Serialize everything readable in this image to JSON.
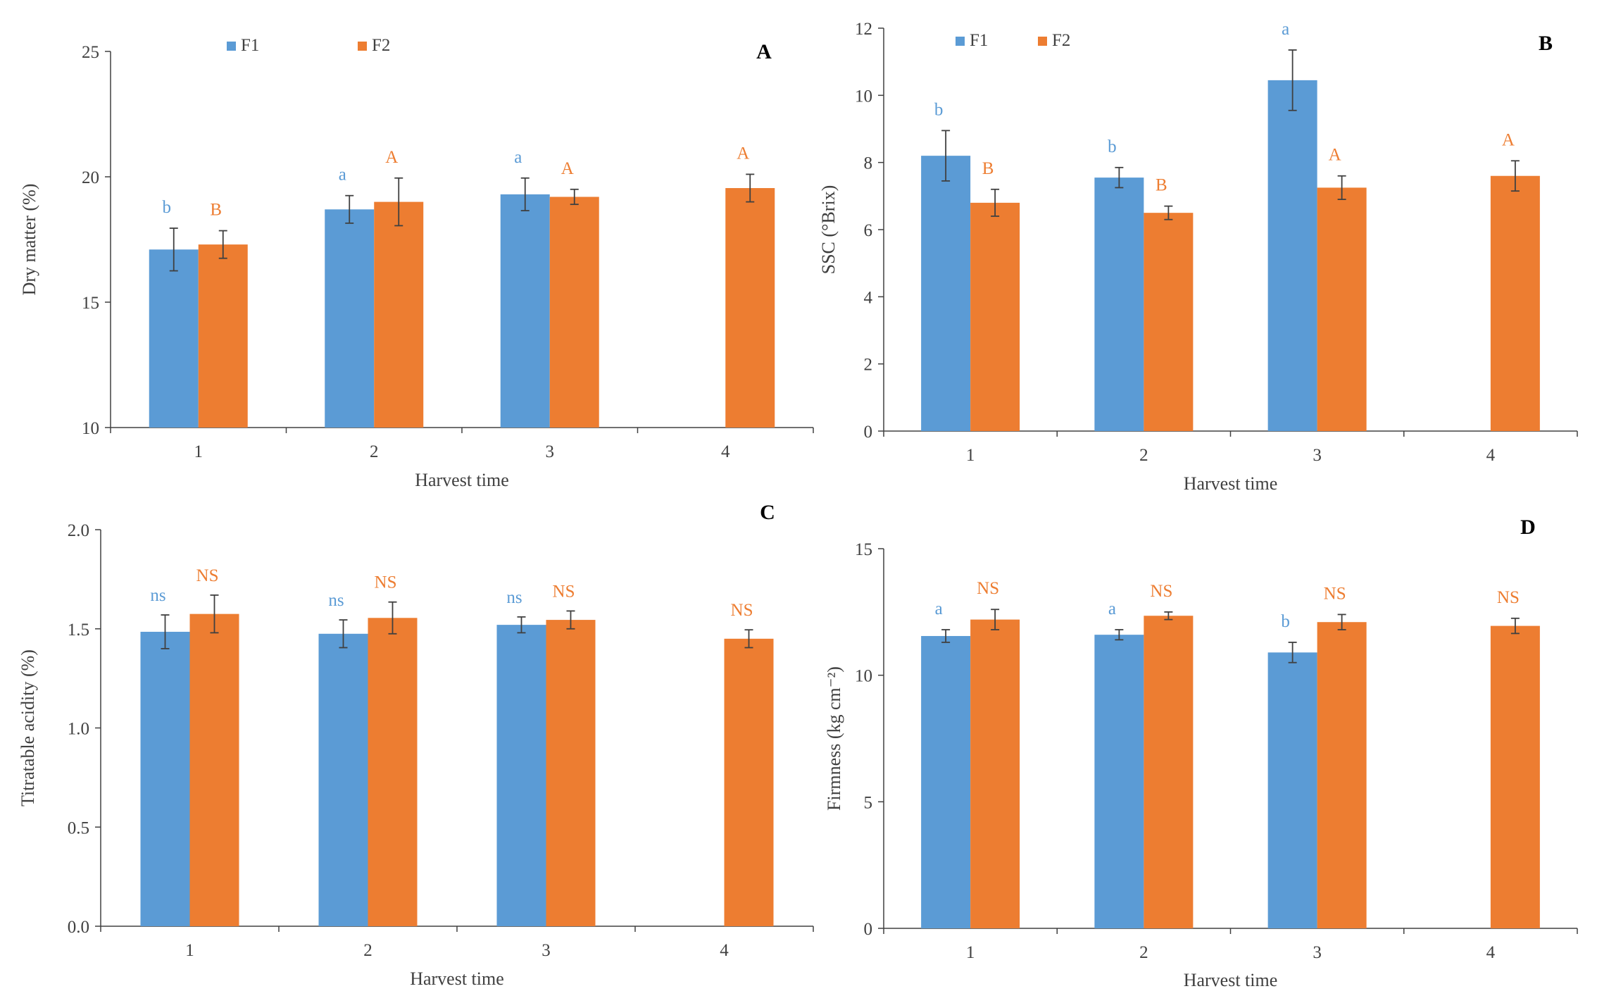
{
  "colors": {
    "F1": "#5B9BD5",
    "F2": "#ED7D31",
    "axis": "#404040",
    "errorbar": "#404040"
  },
  "chart_data": [
    {
      "panel": "A",
      "type": "bar",
      "categories": [
        "1",
        "2",
        "3",
        "4"
      ],
      "xlabel": "Harvest time",
      "ylabel": "Dry matter (%)",
      "ylim": [
        10,
        25
      ],
      "yticks": [
        "10",
        "15",
        "20",
        "25"
      ],
      "show_legend": true,
      "series": [
        {
          "name": "F1",
          "values": [
            17.1,
            18.7,
            19.3,
            null
          ],
          "errors": [
            0.85,
            0.55,
            0.65,
            null
          ],
          "labels": [
            "b",
            "a",
            "a",
            ""
          ]
        },
        {
          "name": "F2",
          "values": [
            17.3,
            19.0,
            19.2,
            19.55
          ],
          "errors": [
            0.55,
            0.95,
            0.3,
            0.55
          ],
          "labels": [
            "B",
            "A",
            "A",
            "A"
          ]
        }
      ]
    },
    {
      "panel": "B",
      "type": "bar",
      "categories": [
        "1",
        "2",
        "3",
        "4"
      ],
      "xlabel": "Harvest time",
      "ylabel": "SSC (°Brix)",
      "ylim": [
        0,
        12
      ],
      "yticks": [
        "0",
        "2",
        "4",
        "6",
        "8",
        "10",
        "12"
      ],
      "show_legend": true,
      "series": [
        {
          "name": "F1",
          "values": [
            8.2,
            7.55,
            10.45,
            null
          ],
          "errors": [
            0.75,
            0.3,
            0.9,
            null
          ],
          "labels": [
            "b",
            "b",
            "a",
            ""
          ]
        },
        {
          "name": "F2",
          "values": [
            6.8,
            6.5,
            7.25,
            7.6
          ],
          "errors": [
            0.4,
            0.2,
            0.35,
            0.45
          ],
          "labels": [
            "B",
            "B",
            "A",
            "A"
          ]
        }
      ]
    },
    {
      "panel": "C",
      "type": "bar",
      "categories": [
        "1",
        "2",
        "3",
        "4"
      ],
      "xlabel": "Harvest time",
      "ylabel": "Titratable acidity (%)",
      "ylim": [
        0,
        2
      ],
      "yticks": [
        "0.0",
        "0.5",
        "1.0",
        "1.5",
        "2.0"
      ],
      "show_legend": false,
      "series": [
        {
          "name": "F1",
          "values": [
            1.485,
            1.475,
            1.52,
            null
          ],
          "errors": [
            0.085,
            0.07,
            0.04,
            null
          ],
          "labels": [
            "ns",
            "ns",
            "ns",
            ""
          ]
        },
        {
          "name": "F2",
          "values": [
            1.575,
            1.555,
            1.545,
            1.45
          ],
          "errors": [
            0.095,
            0.08,
            0.045,
            0.045
          ],
          "labels": [
            "NS",
            "NS",
            "NS",
            "NS"
          ]
        }
      ]
    },
    {
      "panel": "D",
      "type": "bar",
      "categories": [
        "1",
        "2",
        "3",
        "4"
      ],
      "xlabel": "Harvest time",
      "ylabel": "Firmness (kg cm⁻²)",
      "ylim": [
        0,
        15
      ],
      "yticks": [
        "0",
        "5",
        "10",
        "15"
      ],
      "show_legend": false,
      "series": [
        {
          "name": "F1",
          "values": [
            11.55,
            11.6,
            10.9,
            null
          ],
          "errors": [
            0.25,
            0.2,
            0.4,
            null
          ],
          "labels": [
            "a",
            "a",
            "b",
            ""
          ]
        },
        {
          "name": "F2",
          "values": [
            12.2,
            12.35,
            12.1,
            11.95
          ],
          "errors": [
            0.4,
            0.15,
            0.3,
            0.3
          ],
          "labels": [
            "NS",
            "NS",
            "NS",
            "NS"
          ]
        }
      ]
    }
  ]
}
